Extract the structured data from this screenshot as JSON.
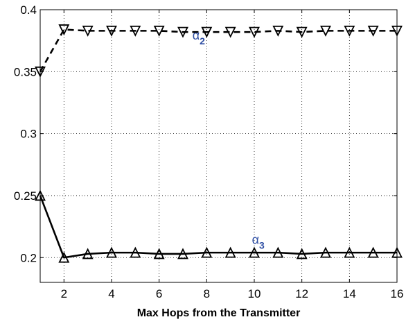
{
  "chart_data": {
    "type": "line",
    "title": "",
    "xlabel": "Max Hops from the Transmitter",
    "ylabel": "",
    "xlim": [
      1,
      16
    ],
    "ylim": [
      0.18,
      0.4
    ],
    "x_ticks": [
      2,
      4,
      6,
      8,
      10,
      12,
      14,
      16
    ],
    "y_ticks": [
      0.2,
      0.25,
      0.3,
      0.35,
      0.4
    ],
    "grid": true,
    "series": [
      {
        "style": "dashed",
        "marker": "triangle-down",
        "color": "#000000",
        "x": [
          1,
          2,
          3,
          4,
          5,
          6,
          7,
          8,
          9,
          10,
          11,
          12,
          13,
          14,
          15,
          16
        ],
        "values": [
          0.35,
          0.384,
          0.383,
          0.383,
          0.383,
          0.383,
          0.382,
          0.382,
          0.382,
          0.382,
          0.383,
          0.382,
          0.383,
          0.383,
          0.383,
          0.383
        ],
        "annotation": {
          "greek": "α",
          "sub": "2",
          "x": 7.4,
          "y": 0.376
        }
      },
      {
        "style": "solid",
        "marker": "triangle-up",
        "color": "#000000",
        "x": [
          1,
          2,
          3,
          4,
          5,
          6,
          7,
          8,
          9,
          10,
          11,
          12,
          13,
          14,
          15,
          16
        ],
        "values": [
          0.25,
          0.2,
          0.203,
          0.204,
          0.204,
          0.203,
          0.203,
          0.204,
          0.204,
          0.204,
          0.204,
          0.203,
          0.204,
          0.204,
          0.204,
          0.204
        ],
        "annotation": {
          "greek": "α",
          "sub": "3",
          "x": 9.9,
          "y": 0.211
        }
      }
    ],
    "annotation_color": "#2e4ea3"
  }
}
